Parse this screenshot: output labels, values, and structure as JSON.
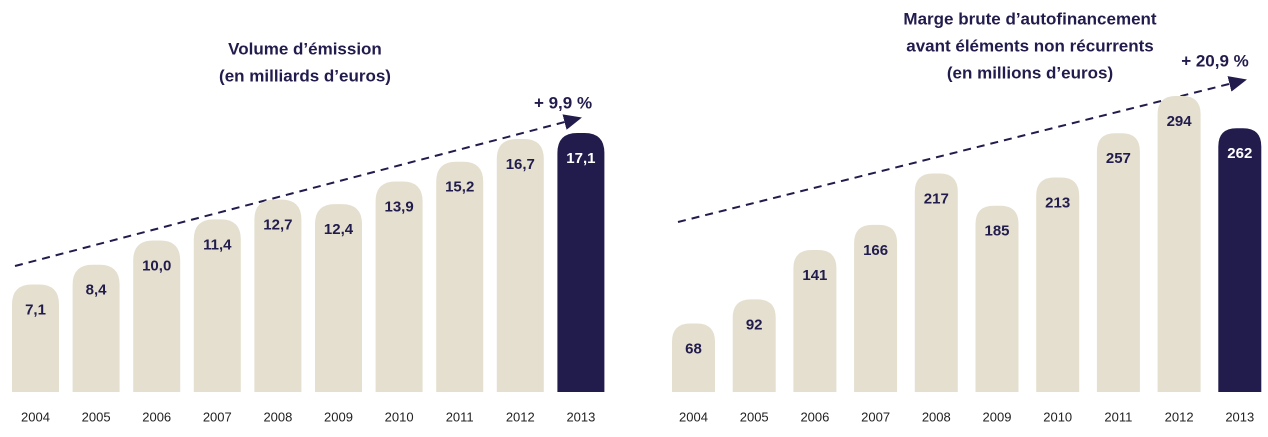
{
  "chart_data": [
    {
      "type": "bar",
      "title": [
        "Volume d’émission",
        "(en milliards d’euros)"
      ],
      "annotation": "+ 9,9 %",
      "categories": [
        "2004",
        "2005",
        "2006",
        "2007",
        "2008",
        "2009",
        "2010",
        "2011",
        "2012",
        "2013"
      ],
      "values": [
        7.1,
        8.4,
        10.0,
        11.4,
        12.7,
        12.4,
        13.9,
        15.2,
        16.7,
        17.1
      ],
      "value_labels": [
        "7,1",
        "8,4",
        "10,0",
        "11,4",
        "12,7",
        "12,4",
        "13,9",
        "15,2",
        "16,7",
        "17,1"
      ],
      "colors": [
        "#e4dfcf",
        "#e4dfcf",
        "#e4dfcf",
        "#e4dfcf",
        "#e4dfcf",
        "#e4dfcf",
        "#e4dfcf",
        "#e4dfcf",
        "#e4dfcf",
        "#221c4d"
      ]
    },
    {
      "type": "bar",
      "title": [
        "Marge brute d’autofinancement",
        "avant éléments non récurrents",
        "(en millions d’euros)"
      ],
      "annotation": "+ 20,9 %",
      "categories": [
        "2004",
        "2005",
        "2006",
        "2007",
        "2008",
        "2009",
        "2010",
        "2011",
        "2012",
        "2013"
      ],
      "values": [
        68,
        92,
        141,
        166,
        217,
        185,
        213,
        257,
        294,
        262
      ],
      "colors": [
        "#e4dfcf",
        "#e4dfcf",
        "#e4dfcf",
        "#e4dfcf",
        "#e4dfcf",
        "#e4dfcf",
        "#e4dfcf",
        "#e4dfcf",
        "#e4dfcf",
        "#221c4d"
      ]
    }
  ]
}
